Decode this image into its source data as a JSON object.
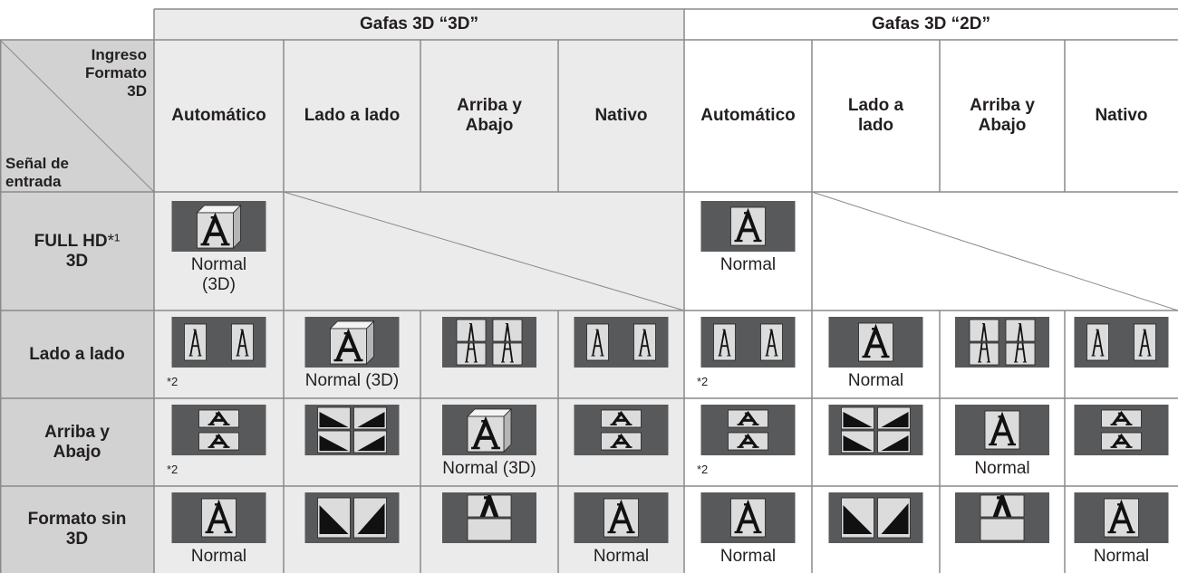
{
  "table": {
    "corner": {
      "top": [
        "Ingreso",
        "Formato",
        "3D"
      ],
      "bottom": [
        "Señal de",
        "entrada"
      ]
    },
    "groups": [
      "Gafas 3D “3D”",
      "Gafas 3D “2D”"
    ],
    "columns": [
      [
        "Automático"
      ],
      [
        "Lado a lado"
      ],
      [
        "Arriba y",
        "Abajo"
      ],
      [
        "Nativo"
      ],
      [
        "Automático"
      ],
      [
        "Lado a",
        "lado"
      ],
      [
        "Arriba y",
        "Abajo"
      ],
      [
        "Nativo"
      ]
    ],
    "rows": [
      {
        "label": [
          "FULL HD",
          "3D"
        ],
        "note": "*¹",
        "cells": [
          {
            "icon": "3d",
            "caption": [
              "Normal",
              "(3D)"
            ]
          },
          null,
          null,
          null,
          {
            "icon": "normal",
            "caption": [
              "Normal"
            ]
          },
          null,
          null,
          null
        ]
      },
      {
        "label": [
          "Lado a lado"
        ],
        "cells": [
          {
            "icon": "sbs",
            "note": "*2"
          },
          {
            "icon": "3d",
            "caption": [
              "Normal (3D)"
            ]
          },
          {
            "icon": "sbs-tb"
          },
          {
            "icon": "sbs"
          },
          {
            "icon": "sbs",
            "note": "*2"
          },
          {
            "icon": "normal",
            "caption": [
              "Normal"
            ]
          },
          {
            "icon": "sbs-tb"
          },
          {
            "icon": "sbs"
          }
        ]
      },
      {
        "label": [
          "Arriba y",
          "Abajo"
        ],
        "cells": [
          {
            "icon": "tb",
            "note": "*2"
          },
          {
            "icon": "tb-sbs"
          },
          {
            "icon": "3d",
            "caption": [
              "Normal (3D)"
            ]
          },
          {
            "icon": "tb"
          },
          {
            "icon": "tb",
            "note": "*2"
          },
          {
            "icon": "tb-sbs"
          },
          {
            "icon": "normal",
            "caption": [
              "Normal"
            ]
          },
          {
            "icon": "tb"
          }
        ]
      },
      {
        "label": [
          "Formato sin",
          "3D"
        ],
        "cells": [
          {
            "icon": "normal",
            "caption": [
              "Normal"
            ]
          },
          {
            "icon": "half-sbs"
          },
          {
            "icon": "half-tb"
          },
          {
            "icon": "normal",
            "caption": [
              "Normal"
            ]
          },
          {
            "icon": "normal",
            "caption": [
              "Normal"
            ]
          },
          {
            "icon": "half-sbs"
          },
          {
            "icon": "half-tb"
          },
          {
            "icon": "normal",
            "caption": [
              "Normal"
            ]
          }
        ]
      }
    ]
  }
}
